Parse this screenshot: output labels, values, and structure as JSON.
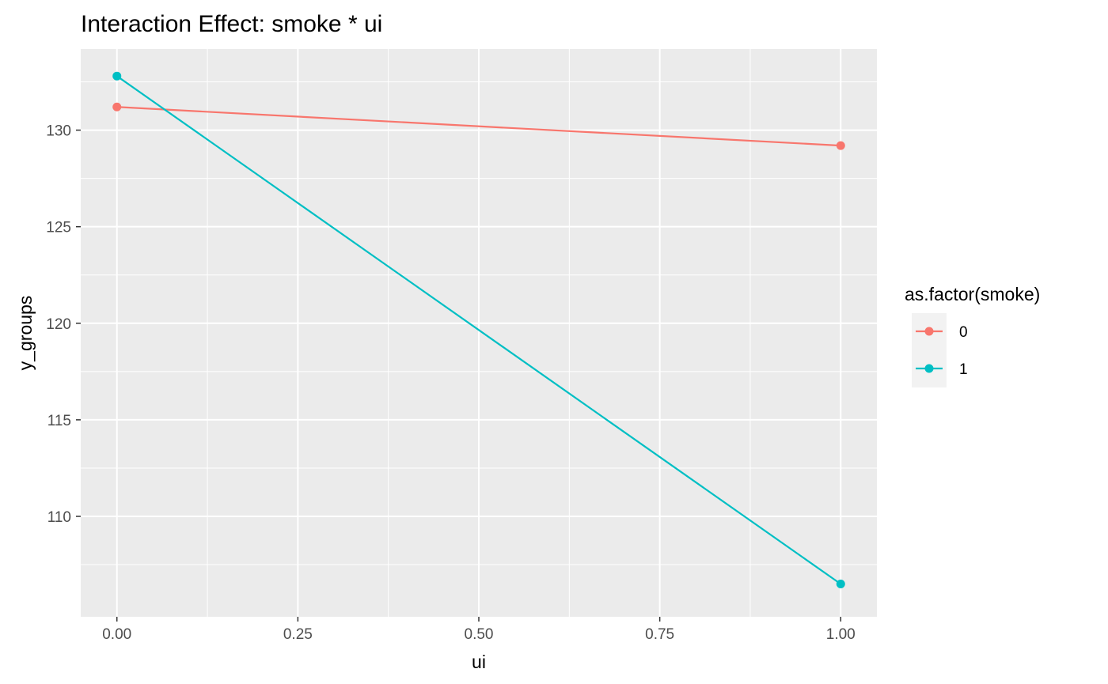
{
  "chart_data": {
    "type": "line",
    "title": "Interaction Effect: smoke * ui",
    "xlabel": "ui",
    "ylabel": "y_groups",
    "x": [
      0,
      1
    ],
    "xlim": [
      -0.05,
      1.05
    ],
    "ylim": [
      104.8,
      134.2
    ],
    "xticks": [
      0,
      0.25,
      0.5,
      0.75,
      1
    ],
    "xtick_labels": [
      "0.00",
      "0.25",
      "0.50",
      "0.75",
      "1.00"
    ],
    "yticks": [
      110,
      115,
      120,
      125,
      130
    ],
    "ytick_labels": [
      "110",
      "115",
      "120",
      "125",
      "130"
    ],
    "grid": true,
    "legend": {
      "title": "as.factor(smoke)",
      "position": "right"
    },
    "series": [
      {
        "name": "0",
        "values": [
          131.2,
          129.2
        ],
        "color": "#F8766D"
      },
      {
        "name": "1",
        "values": [
          132.8,
          106.5
        ],
        "color": "#00BFC4"
      }
    ]
  }
}
